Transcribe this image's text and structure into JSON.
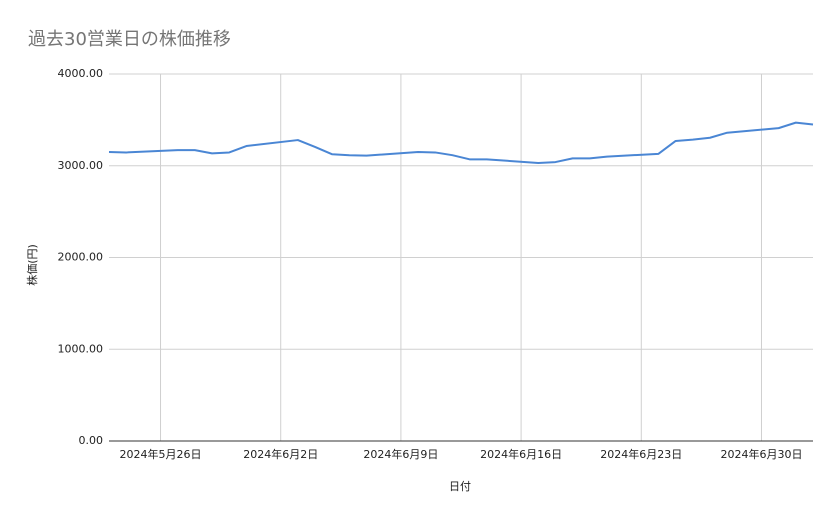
{
  "chart_data": {
    "type": "line",
    "title": "過去30営業日の株価推移",
    "x_label": "日付",
    "y_label": "株価(円)",
    "x": [
      "2024-05-23",
      "2024-05-24",
      "2024-05-27",
      "2024-05-28",
      "2024-05-29",
      "2024-05-30",
      "2024-05-31",
      "2024-06-03",
      "2024-06-04",
      "2024-06-05",
      "2024-06-06",
      "2024-06-07",
      "2024-06-10",
      "2024-06-11",
      "2024-06-12",
      "2024-06-13",
      "2024-06-14",
      "2024-06-17",
      "2024-06-18",
      "2024-06-19",
      "2024-06-20",
      "2024-06-21",
      "2024-06-24",
      "2024-06-25",
      "2024-06-26",
      "2024-06-27",
      "2024-06-28",
      "2024-07-01",
      "2024-07-02",
      "2024-07-03"
    ],
    "values": [
      3150,
      3145,
      3170,
      3170,
      3135,
      3145,
      3215,
      3280,
      3205,
      3125,
      3115,
      3110,
      3150,
      3145,
      3115,
      3070,
      3070,
      3030,
      3040,
      3080,
      3080,
      3100,
      3130,
      3270,
      3285,
      3305,
      3360,
      3410,
      3470,
      3450
    ],
    "color": "#4a86d4",
    "xlim": [
      "2024-05-23",
      "2024-07-03"
    ],
    "xticks": [
      {
        "value": "2024-05-26",
        "label": "2024年5月26日"
      },
      {
        "value": "2024-06-02",
        "label": "2024年6月2日"
      },
      {
        "value": "2024-06-09",
        "label": "2024年6月9日"
      },
      {
        "value": "2024-06-16",
        "label": "2024年6月16日"
      },
      {
        "value": "2024-06-23",
        "label": "2024年6月23日"
      },
      {
        "value": "2024-06-30",
        "label": "2024年6月30日"
      }
    ],
    "ylim": [
      0,
      4000
    ],
    "yticks": [
      {
        "value": 0,
        "label": "0.00"
      },
      {
        "value": 1000,
        "label": "1000.00"
      },
      {
        "value": 2000,
        "label": "2000.00"
      },
      {
        "value": 3000,
        "label": "3000.00"
      },
      {
        "value": 4000,
        "label": "4000.00"
      }
    ],
    "grid": true
  }
}
